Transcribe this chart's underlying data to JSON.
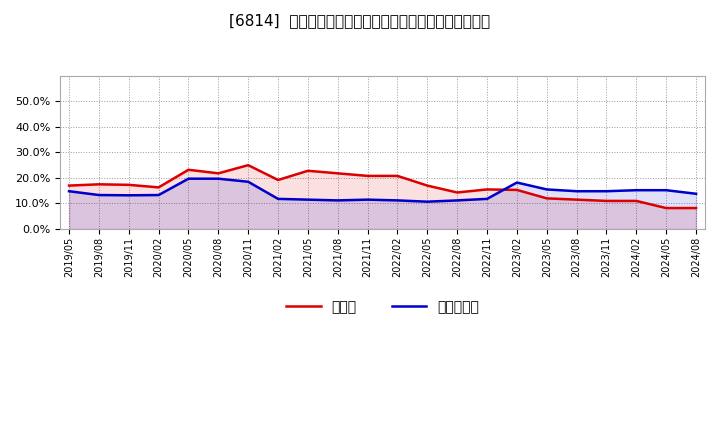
{
  "title": "[6814]  現頲金、有利子負債の総資産に対する比率の推移",
  "dates": [
    "2019/05",
    "2019/08",
    "2019/11",
    "2020/02",
    "2020/05",
    "2020/08",
    "2020/11",
    "2021/02",
    "2021/05",
    "2021/08",
    "2021/11",
    "2022/02",
    "2022/05",
    "2022/08",
    "2022/11",
    "2023/02",
    "2023/05",
    "2023/08",
    "2023/11",
    "2024/02",
    "2024/05",
    "2024/08"
  ],
  "cash": [
    0.17,
    0.175,
    0.173,
    0.163,
    0.232,
    0.218,
    0.25,
    0.192,
    0.228,
    0.218,
    0.208,
    0.208,
    0.17,
    0.143,
    0.155,
    0.153,
    0.12,
    0.115,
    0.11,
    0.11,
    0.082,
    0.082
  ],
  "debt": [
    0.148,
    0.133,
    0.132,
    0.133,
    0.197,
    0.197,
    0.185,
    0.118,
    0.115,
    0.112,
    0.115,
    0.112,
    0.107,
    0.112,
    0.118,
    0.182,
    0.155,
    0.148,
    0.148,
    0.152,
    0.152,
    0.138
  ],
  "cash_color": "#dd0000",
  "debt_color": "#0000cc",
  "background_color": "#ffffff",
  "plot_bg_color": "#ffffff",
  "grid_color": "#aaaaaa",
  "ylim": [
    0.0,
    0.6
  ],
  "yticks": [
    0.0,
    0.1,
    0.2,
    0.3,
    0.4,
    0.5
  ],
  "legend_cash": "現頲金",
  "legend_debt": "有利子負債"
}
